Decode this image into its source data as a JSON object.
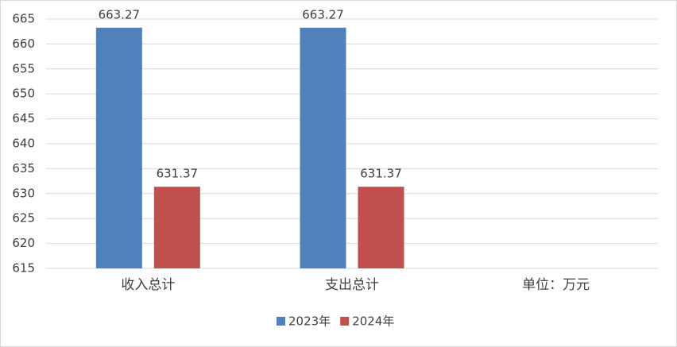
{
  "chart_data": {
    "type": "bar",
    "categories": [
      "收入总计",
      "支出总计",
      "单位：万元"
    ],
    "series": [
      {
        "name": "2023年",
        "color": "#4f81bd",
        "values": [
          663.27,
          663.27,
          null
        ]
      },
      {
        "name": "2024年",
        "color": "#c0504d",
        "values": [
          631.37,
          631.37,
          null
        ]
      }
    ],
    "ylim": [
      615,
      665
    ],
    "yticks": [
      615,
      620,
      625,
      630,
      635,
      640,
      645,
      650,
      655,
      660,
      665
    ],
    "grid": true,
    "legend": "bottom"
  }
}
